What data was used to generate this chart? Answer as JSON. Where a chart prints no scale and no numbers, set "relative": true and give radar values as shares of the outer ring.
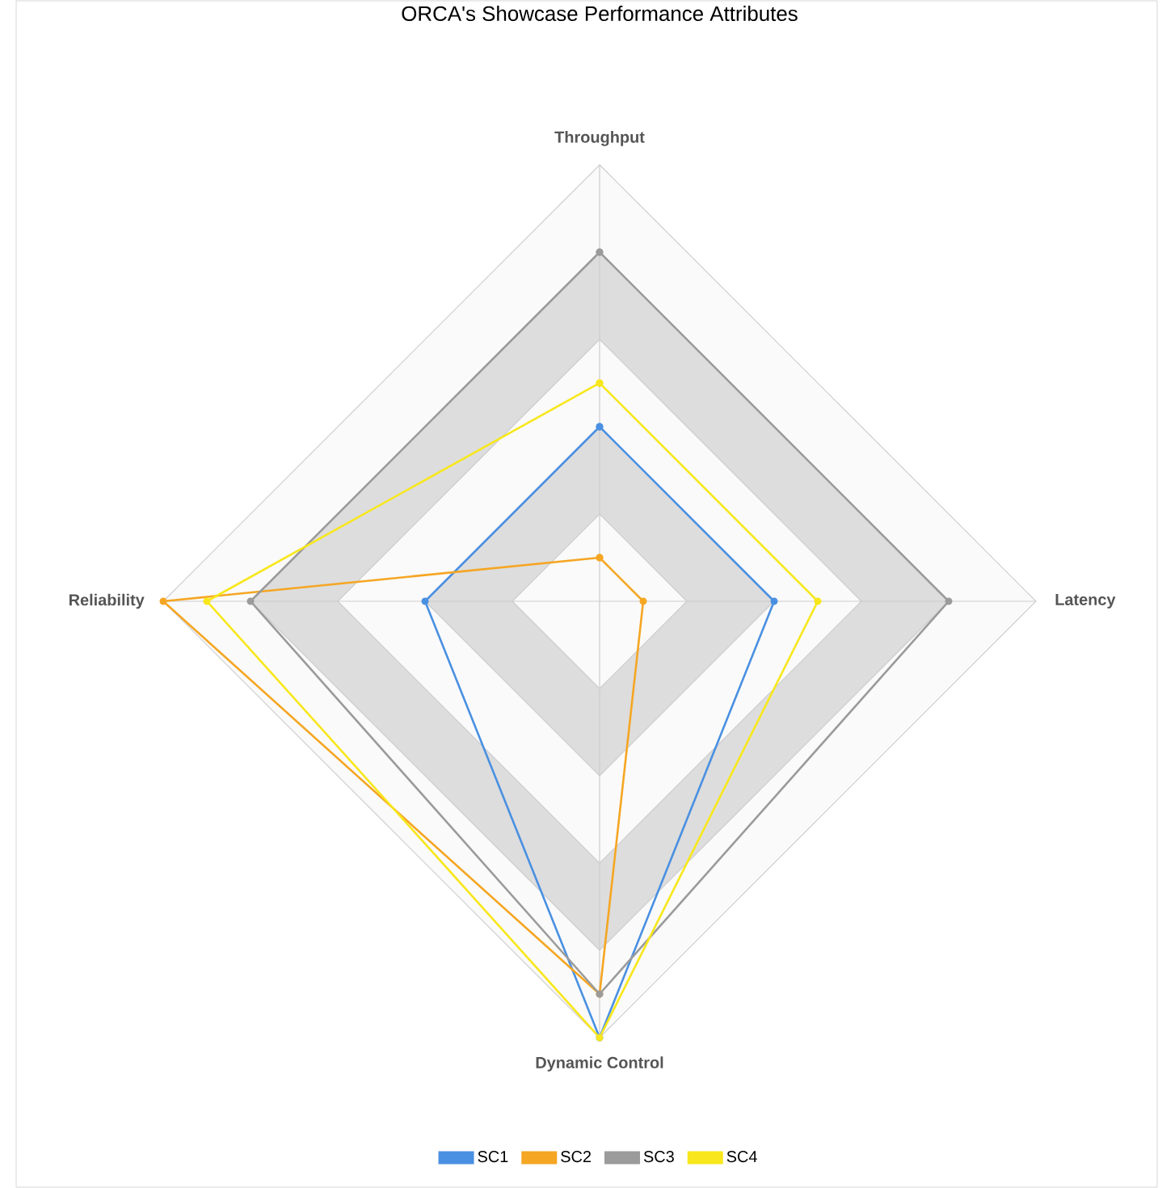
{
  "chart_data": {
    "type": "radar",
    "title": "ORCA's Showcase Performance Attributes",
    "categories": [
      "Throughput",
      "Latency",
      "Dynamic Control",
      "Reliability"
    ],
    "relative": true,
    "grid": true,
    "legend": "bottom",
    "marker": "circle",
    "series": [
      {
        "name": "SC1",
        "color": "#4a90e2",
        "values": [
          0.4,
          0.4,
          1.0,
          0.4
        ]
      },
      {
        "name": "SC2",
        "color": "#f5a623",
        "values": [
          0.1,
          0.1,
          0.9,
          1.0
        ]
      },
      {
        "name": "SC3",
        "color": "#9b9b9b",
        "values": [
          0.8,
          0.8,
          0.9,
          0.8
        ]
      },
      {
        "name": "SC4",
        "color": "#f8e71c",
        "values": [
          0.5,
          0.5,
          1.0,
          0.9
        ]
      }
    ]
  }
}
